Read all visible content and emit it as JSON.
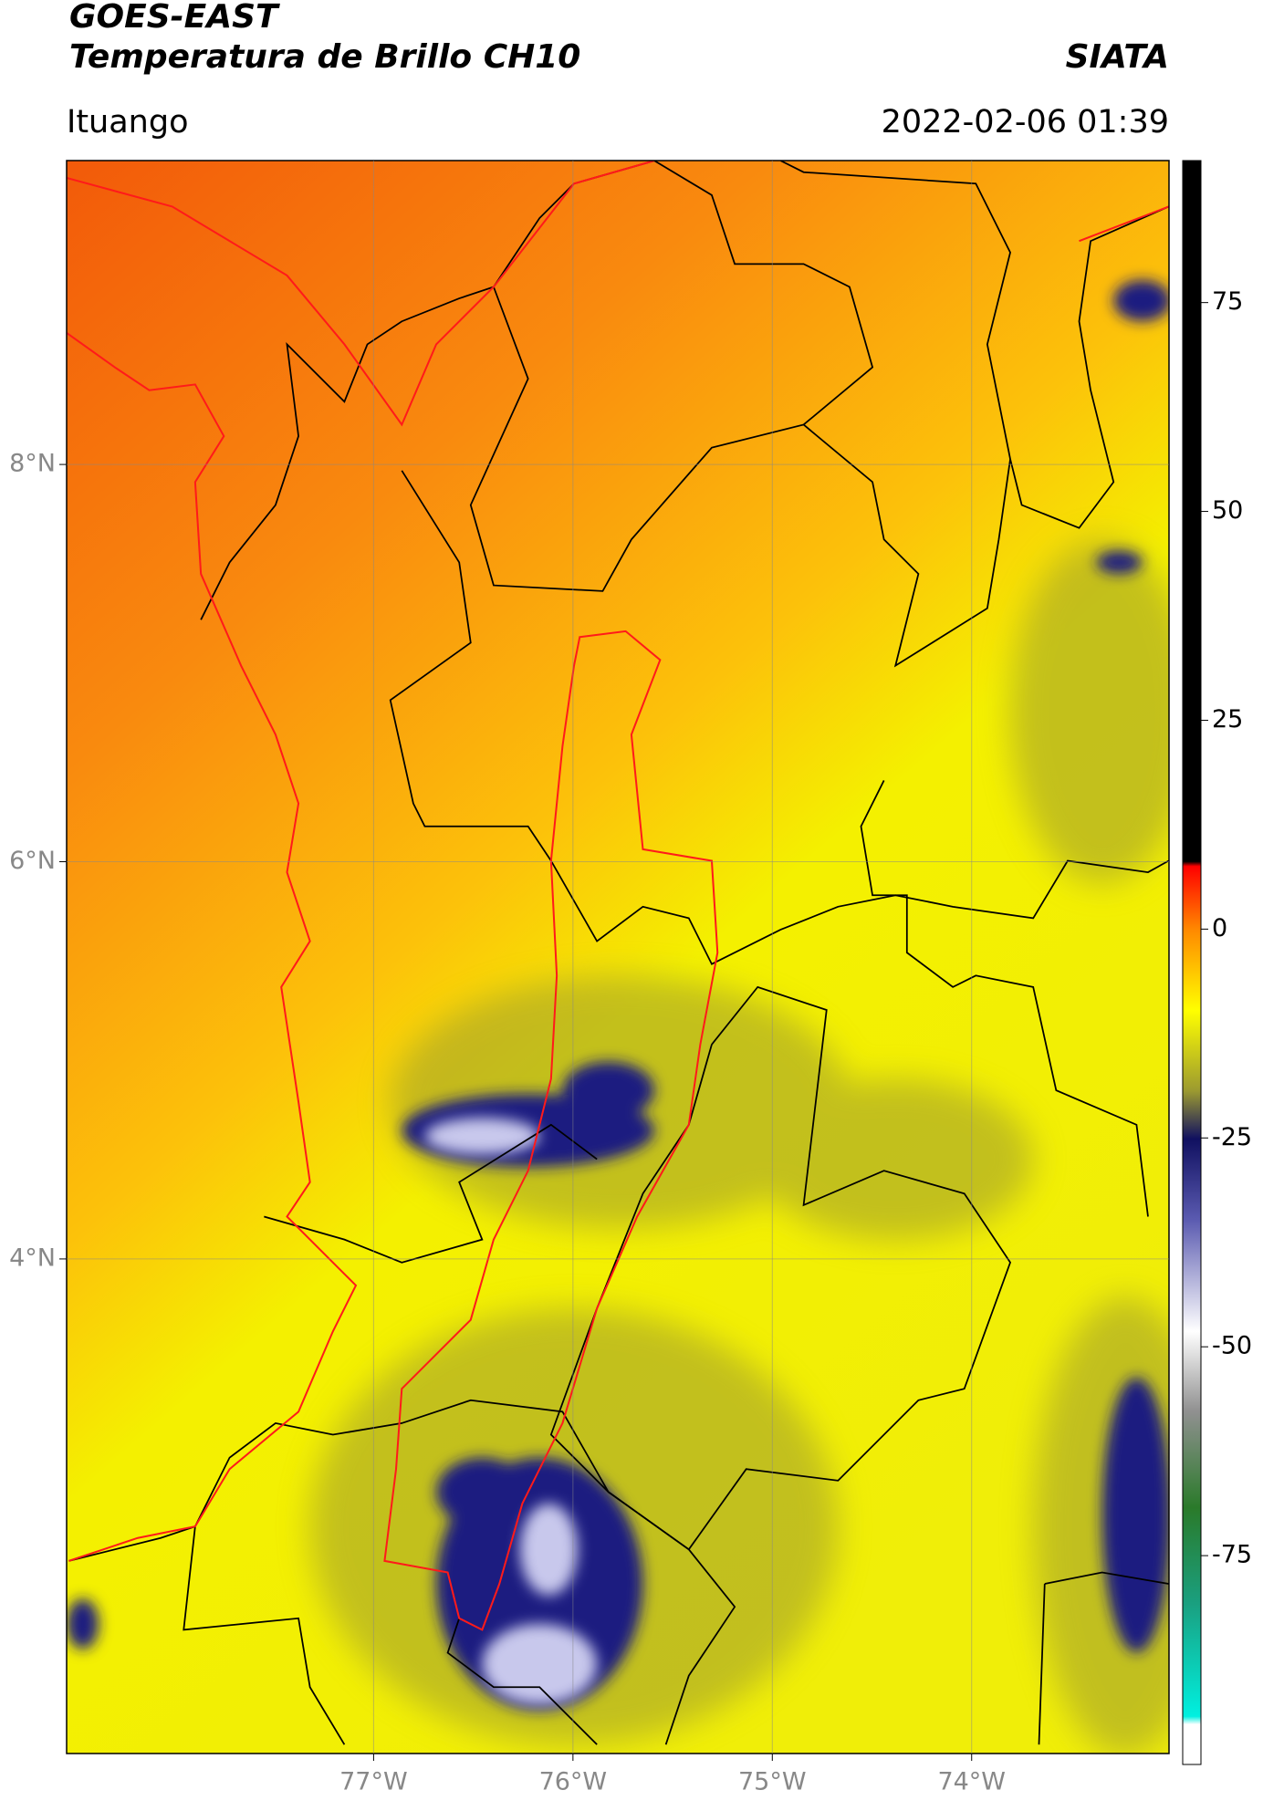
{
  "header": {
    "title": "GOES-EAST",
    "subtitle": "Temperatura de Brillo CH10",
    "source": "SIATA",
    "location": "Ituango",
    "datetime": "2022-02-06 01:39"
  },
  "map": {
    "xlim": [
      -78.54,
      -73.01
    ],
    "ylim": [
      1.51,
      9.53
    ],
    "xticks": [
      {
        "value": -77,
        "label": "77°W"
      },
      {
        "value": -76,
        "label": "76°W"
      },
      {
        "value": -75,
        "label": "75°W"
      },
      {
        "value": -74,
        "label": "74°W"
      }
    ],
    "yticks": [
      {
        "value": 8,
        "label": "8°N"
      },
      {
        "value": 6,
        "label": "6°N"
      },
      {
        "value": 4,
        "label": "4°N"
      }
    ],
    "grid": true
  },
  "colorbar": {
    "lim": [
      -100,
      92
    ],
    "ticks": [
      75,
      50,
      25,
      0,
      -25,
      -50,
      -75
    ]
  }
}
